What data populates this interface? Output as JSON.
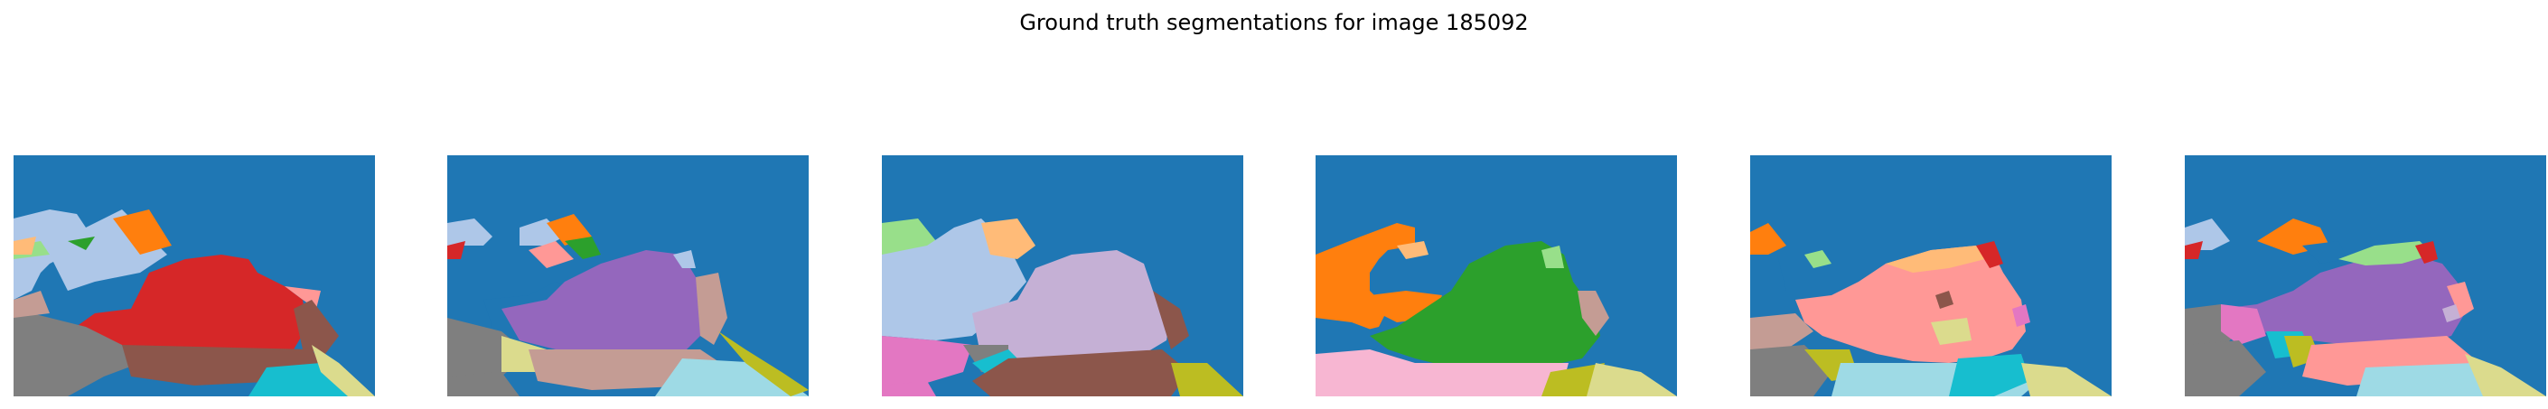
{
  "figure": {
    "title": "Ground truth segmentations for image 185092"
  },
  "colors": {
    "blue": "#1f77b4",
    "orange": "#ff7f0e",
    "green": "#2ca02c",
    "red": "#d62728",
    "purple": "#9467bd",
    "brown": "#8c564b",
    "pink": "#e377c2",
    "gray": "#7f7f7f",
    "olive": "#bcbd22",
    "cyan": "#17becf",
    "light_blue": "#aec7e8",
    "light_orange": "#ffbb78",
    "light_green": "#98df8a",
    "light_red": "#ff9896",
    "light_purple": "#c5b0d5",
    "light_brown": "#c49c94",
    "light_pink": "#f7b6d2",
    "light_gray": "#c7c7c7",
    "light_olive": "#dbdb8d",
    "light_cyan": "#9edae5"
  },
  "panels": [
    {
      "name": "segmentation-1",
      "fish_color": "red",
      "body_color": "light_blue"
    },
    {
      "name": "segmentation-2",
      "fish_color": "purple",
      "body_color": "light_brown"
    },
    {
      "name": "segmentation-3",
      "fish_color": "light_purple",
      "body_color": "light_blue"
    },
    {
      "name": "segmentation-4",
      "fish_color": "green",
      "body_color": "orange"
    },
    {
      "name": "segmentation-5",
      "fish_color": "light_red",
      "body_color": "light_brown"
    },
    {
      "name": "segmentation-6",
      "fish_color": "purple",
      "body_color": "light_red"
    }
  ]
}
